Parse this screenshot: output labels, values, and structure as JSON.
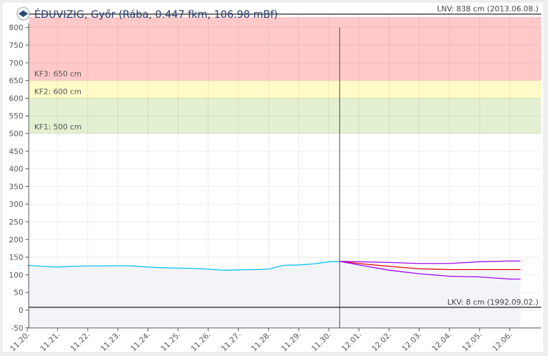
{
  "chart_data": {
    "type": "line",
    "title": "ÉDUVIZIG, Győr (Rába, 0.447 fkm, 106.98 mBf)",
    "logo": "eduvizig-logo",
    "ylim": [
      -50,
      800
    ],
    "yticks": [
      -50,
      0,
      50,
      100,
      150,
      200,
      250,
      300,
      350,
      400,
      450,
      500,
      550,
      600,
      650,
      700,
      750,
      800
    ],
    "xtick_labels": [
      "11.20.",
      "11.21.",
      "11.22.",
      "11.23.",
      "11.24.",
      "11.25.",
      "11.26.",
      "11.27.",
      "11.28.",
      "11.29.",
      "11.30.",
      "12.01.",
      "12.02.",
      "12.03.",
      "12.04.",
      "12.05.",
      "12.06."
    ],
    "grid": true,
    "bands": [
      {
        "label": "KF3: 650 cm",
        "from": 650,
        "to": 830,
        "color": "#ffc9c9"
      },
      {
        "label": "KF2: 600 cm",
        "from": 600,
        "to": 650,
        "color": "#fffbc9"
      },
      {
        "label": "KF1: 500 cm",
        "from": 500,
        "to": 600,
        "color": "#e3f0d1"
      }
    ],
    "reference_lines": [
      {
        "label": "LNV: 838 cm (2013.06.08.)",
        "value": 838
      },
      {
        "label": "LKV: 8 cm (1992.09.02.)",
        "value": 8
      }
    ],
    "now_day": 10.36,
    "series": [
      {
        "role": "observed",
        "color": "#00bfff",
        "x": [
          0,
          0.5,
          1,
          1.5,
          2,
          2.5,
          3,
          3.5,
          4,
          4.5,
          5,
          5.5,
          6,
          6.5,
          7,
          7.5,
          8,
          8.5,
          9,
          9.5,
          10,
          10.36
        ],
        "y": [
          127,
          124,
          122,
          124,
          125,
          125,
          126,
          125,
          122,
          120,
          119,
          118,
          116,
          113,
          114,
          115,
          116,
          127,
          128,
          131,
          137,
          138
        ]
      },
      {
        "role": "forecast-upper",
        "color": "#a000ff",
        "x": [
          10.36,
          11,
          12,
          13,
          14,
          15,
          16,
          16.36
        ],
        "y": [
          138,
          137,
          135,
          132,
          132,
          137,
          139,
          139
        ]
      },
      {
        "role": "forecast",
        "color": "#e00000",
        "x": [
          10.36,
          11,
          12,
          13,
          14,
          15,
          16,
          16.36
        ],
        "y": [
          138,
          132,
          124,
          117,
          115,
          115,
          115,
          115
        ]
      },
      {
        "role": "forecast-lower",
        "color": "#a000ff",
        "x": [
          10.36,
          11,
          12,
          13,
          14,
          15,
          16,
          16.36
        ],
        "y": [
          138,
          128,
          113,
          103,
          96,
          94,
          88,
          88
        ]
      }
    ]
  }
}
